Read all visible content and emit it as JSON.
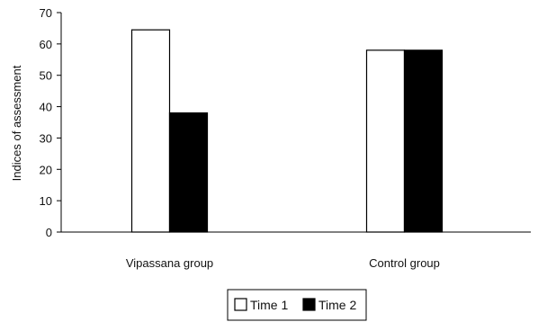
{
  "chart_data": {
    "type": "bar",
    "title": "",
    "xlabel": "",
    "ylabel": "Indices of assessment",
    "ylim": [
      0,
      70
    ],
    "yticks": [
      0,
      10,
      20,
      30,
      40,
      50,
      60,
      70
    ],
    "categories": [
      "Vipassana group",
      "Control group"
    ],
    "series": [
      {
        "name": "Time 1",
        "values": [
          64.5,
          58
        ],
        "color": "#ffffff"
      },
      {
        "name": "Time 2",
        "values": [
          38,
          58
        ],
        "color": "#000000"
      }
    ],
    "grid": false,
    "legend": "bottom-center"
  }
}
